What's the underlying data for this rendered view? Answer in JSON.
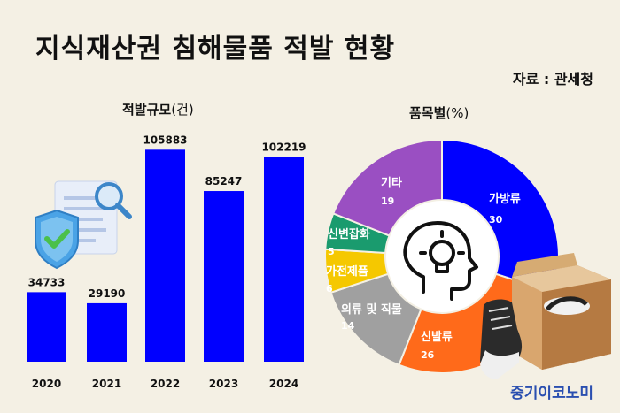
{
  "header": {
    "title": "지식재산권 침해물품 적발 현황",
    "source": "자료 : 관세청",
    "brand": "중기이코노미"
  },
  "chart_data": [
    {
      "type": "bar",
      "title": "적발규모",
      "title_unit": "(건)",
      "categories": [
        "2020",
        "2021",
        "2022",
        "2023",
        "2024"
      ],
      "values": [
        34733,
        29190,
        105883,
        85247,
        102219
      ],
      "color": "#0000ff",
      "ylim": [
        0,
        110000
      ]
    },
    {
      "type": "pie",
      "style": "donut",
      "title": "품목별",
      "title_unit": "(%)",
      "slices": [
        {
          "name": "가방류",
          "value": 30,
          "color": "#0000ff"
        },
        {
          "name": "신발류",
          "value": 26,
          "color": "#ff6a1a"
        },
        {
          "name": "의류 및 직물",
          "value": 14,
          "color": "#a0a0a0"
        },
        {
          "name": "가전제품",
          "value": 6,
          "color": "#f5c800"
        },
        {
          "name": "신변잡화",
          "value": 5,
          "color": "#1a9b6e"
        },
        {
          "name": "기타",
          "value": 19,
          "color": "#9a4fc2"
        }
      ]
    }
  ],
  "icons": {
    "document": "document-search-icon",
    "shield": "shield-check-icon",
    "center": "head-lightbulb-icon",
    "shoe": "shoe-icon",
    "box": "shoebox-icon"
  }
}
